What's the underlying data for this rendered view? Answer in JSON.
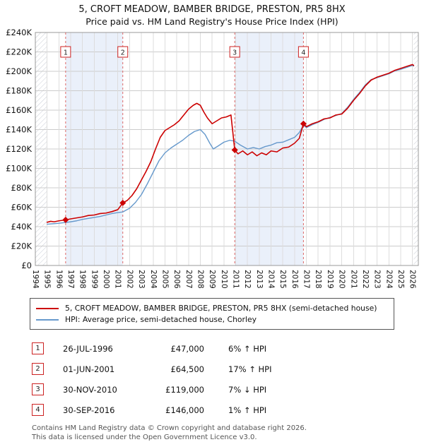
{
  "title": "5, CROFT MEADOW, BAMBER BRIDGE, PRESTON, PR5 8HX",
  "subtitle": "Price paid vs. HM Land Registry's House Price Index (HPI)",
  "chart_data": {
    "type": "line",
    "x_range": [
      1994,
      2026.5
    ],
    "y_range": [
      0,
      240000
    ],
    "grid": true,
    "y_ticks": [
      {
        "v": 0,
        "label": "£0"
      },
      {
        "v": 20000,
        "label": "£20K"
      },
      {
        "v": 40000,
        "label": "£40K"
      },
      {
        "v": 60000,
        "label": "£60K"
      },
      {
        "v": 80000,
        "label": "£80K"
      },
      {
        "v": 100000,
        "label": "£100K"
      },
      {
        "v": 120000,
        "label": "£120K"
      },
      {
        "v": 140000,
        "label": "£140K"
      },
      {
        "v": 160000,
        "label": "£160K"
      },
      {
        "v": 180000,
        "label": "£180K"
      },
      {
        "v": 200000,
        "label": "£200K"
      },
      {
        "v": 220000,
        "label": "£220K"
      },
      {
        "v": 240000,
        "label": "£240K"
      }
    ],
    "x_ticks": [
      1994,
      1995,
      1996,
      1997,
      1998,
      1999,
      2000,
      2001,
      2002,
      2003,
      2004,
      2005,
      2006,
      2007,
      2008,
      2009,
      2010,
      2011,
      2012,
      2013,
      2014,
      2015,
      2016,
      2017,
      2018,
      2019,
      2020,
      2021,
      2022,
      2023,
      2024,
      2025,
      2026
    ],
    "bands": [
      [
        1996.57,
        2001.42
      ],
      [
        2010.92,
        2016.75
      ]
    ],
    "band_color": "#eaf0fa",
    "no_data_edges": [
      [
        1994,
        1995
      ],
      [
        2026.1,
        2026.5
      ]
    ],
    "sale_line_color": "#dd6666",
    "series": [
      {
        "name": "5, CROFT MEADOW, BAMBER BRIDGE, PRESTON, PR5 8HX (semi-detached house)",
        "color": "#cc0000",
        "width": 1.6,
        "points": [
          [
            1995.0,
            44500
          ],
          [
            1995.3,
            45500
          ],
          [
            1995.6,
            45000
          ],
          [
            1996.0,
            46000
          ],
          [
            1996.57,
            47000
          ],
          [
            1997.0,
            48000
          ],
          [
            1997.5,
            49000
          ],
          [
            1998.0,
            50000
          ],
          [
            1998.5,
            51500
          ],
          [
            1999.0,
            52000
          ],
          [
            1999.5,
            53500
          ],
          [
            2000.0,
            54000
          ],
          [
            2000.5,
            55500
          ],
          [
            2001.0,
            57500
          ],
          [
            2001.42,
            64500
          ],
          [
            2001.8,
            67000
          ],
          [
            2002.2,
            72000
          ],
          [
            2002.6,
            79000
          ],
          [
            2003.0,
            88000
          ],
          [
            2003.4,
            97000
          ],
          [
            2003.8,
            107000
          ],
          [
            2004.2,
            120000
          ],
          [
            2004.6,
            132000
          ],
          [
            2005.0,
            139000
          ],
          [
            2005.4,
            142000
          ],
          [
            2005.8,
            145000
          ],
          [
            2006.2,
            149000
          ],
          [
            2006.6,
            155000
          ],
          [
            2007.0,
            161000
          ],
          [
            2007.4,
            165000
          ],
          [
            2007.7,
            167000
          ],
          [
            2008.0,
            165000
          ],
          [
            2008.3,
            158000
          ],
          [
            2008.6,
            152000
          ],
          [
            2009.0,
            146000
          ],
          [
            2009.4,
            149000
          ],
          [
            2009.8,
            152000
          ],
          [
            2010.2,
            153000
          ],
          [
            2010.6,
            155000
          ],
          [
            2010.92,
            119000
          ],
          [
            2011.2,
            115000
          ],
          [
            2011.6,
            118000
          ],
          [
            2012.0,
            114000
          ],
          [
            2012.4,
            117000
          ],
          [
            2012.8,
            113000
          ],
          [
            2013.2,
            116000
          ],
          [
            2013.6,
            114000
          ],
          [
            2014.0,
            118000
          ],
          [
            2014.5,
            117000
          ],
          [
            2015.0,
            121000
          ],
          [
            2015.5,
            122000
          ],
          [
            2016.0,
            126000
          ],
          [
            2016.4,
            131000
          ],
          [
            2016.75,
            146000
          ],
          [
            2017.0,
            143000
          ],
          [
            2017.5,
            146000
          ],
          [
            2018.0,
            148000
          ],
          [
            2018.5,
            151000
          ],
          [
            2019.0,
            152000
          ],
          [
            2019.5,
            155000
          ],
          [
            2020.0,
            156000
          ],
          [
            2020.5,
            162000
          ],
          [
            2021.0,
            170000
          ],
          [
            2021.5,
            177000
          ],
          [
            2022.0,
            185000
          ],
          [
            2022.5,
            191000
          ],
          [
            2023.0,
            194000
          ],
          [
            2023.5,
            196000
          ],
          [
            2024.0,
            198000
          ],
          [
            2024.5,
            201000
          ],
          [
            2025.0,
            203000
          ],
          [
            2025.5,
            205000
          ],
          [
            2026.0,
            207000
          ],
          [
            2026.1,
            206000
          ]
        ]
      },
      {
        "name": "HPI: Average price, semi-detached house, Chorley",
        "color": "#6699cc",
        "width": 1.4,
        "points": [
          [
            1995.0,
            42500
          ],
          [
            1995.5,
            43000
          ],
          [
            1996.0,
            43500
          ],
          [
            1996.57,
            44300
          ],
          [
            1997.0,
            45000
          ],
          [
            1997.5,
            46000
          ],
          [
            1998.0,
            47500
          ],
          [
            1998.5,
            48500
          ],
          [
            1999.0,
            49500
          ],
          [
            1999.5,
            50500
          ],
          [
            2000.0,
            52000
          ],
          [
            2000.5,
            53500
          ],
          [
            2001.0,
            54500
          ],
          [
            2001.42,
            55100
          ],
          [
            2002.0,
            59000
          ],
          [
            2002.5,
            65000
          ],
          [
            2003.0,
            73000
          ],
          [
            2003.5,
            84000
          ],
          [
            2004.0,
            96000
          ],
          [
            2004.5,
            108000
          ],
          [
            2005.0,
            116000
          ],
          [
            2005.5,
            121000
          ],
          [
            2006.0,
            125000
          ],
          [
            2006.5,
            129000
          ],
          [
            2007.0,
            134000
          ],
          [
            2007.5,
            138000
          ],
          [
            2008.0,
            140000
          ],
          [
            2008.4,
            135000
          ],
          [
            2008.8,
            126000
          ],
          [
            2009.1,
            120000
          ],
          [
            2009.5,
            123000
          ],
          [
            2010.0,
            127000
          ],
          [
            2010.5,
            129000
          ],
          [
            2010.92,
            128000
          ],
          [
            2011.4,
            124000
          ],
          [
            2012.0,
            120000
          ],
          [
            2012.5,
            121500
          ],
          [
            2013.0,
            120000
          ],
          [
            2013.5,
            122500
          ],
          [
            2014.0,
            124000
          ],
          [
            2014.5,
            126500
          ],
          [
            2015.0,
            127000
          ],
          [
            2015.5,
            129500
          ],
          [
            2016.0,
            132000
          ],
          [
            2016.4,
            137000
          ],
          [
            2016.75,
            144500
          ],
          [
            2017.0,
            142000
          ],
          [
            2017.5,
            145000
          ],
          [
            2018.0,
            147500
          ],
          [
            2018.5,
            150500
          ],
          [
            2019.0,
            152500
          ],
          [
            2019.5,
            154500
          ],
          [
            2020.0,
            156500
          ],
          [
            2020.5,
            163000
          ],
          [
            2021.0,
            171000
          ],
          [
            2021.5,
            178000
          ],
          [
            2022.0,
            186000
          ],
          [
            2022.5,
            191500
          ],
          [
            2023.0,
            193500
          ],
          [
            2023.5,
            195500
          ],
          [
            2024.0,
            197500
          ],
          [
            2024.5,
            200500
          ],
          [
            2025.0,
            202000
          ],
          [
            2025.5,
            204000
          ],
          [
            2026.0,
            206000
          ],
          [
            2026.1,
            205500
          ]
        ]
      }
    ],
    "sales": [
      {
        "n": "1",
        "x": 1996.57,
        "y": 47000
      },
      {
        "n": "2",
        "x": 2001.42,
        "y": 64500
      },
      {
        "n": "3",
        "x": 2010.92,
        "y": 119000
      },
      {
        "n": "4",
        "x": 2016.75,
        "y": 146000
      }
    ]
  },
  "legend": [
    {
      "label": "5, CROFT MEADOW, BAMBER BRIDGE, PRESTON, PR5 8HX (semi-detached house)",
      "color": "#cc0000"
    },
    {
      "label": "HPI: Average price, semi-detached house, Chorley",
      "color": "#6699cc"
    }
  ],
  "transactions": [
    {
      "num": "1",
      "date": "26-JUL-1996",
      "price": "£47,000",
      "hpi": "6% ↑ HPI"
    },
    {
      "num": "2",
      "date": "01-JUN-2001",
      "price": "£64,500",
      "hpi": "17% ↑ HPI"
    },
    {
      "num": "3",
      "date": "30-NOV-2010",
      "price": "£119,000",
      "hpi": "7% ↓ HPI"
    },
    {
      "num": "4",
      "date": "30-SEP-2016",
      "price": "£146,000",
      "hpi": "1% ↑ HPI"
    }
  ],
  "footer": {
    "line1": "Contains HM Land Registry data © Crown copyright and database right 2026.",
    "line2": "This data is licensed under the Open Government Licence v3.0."
  }
}
